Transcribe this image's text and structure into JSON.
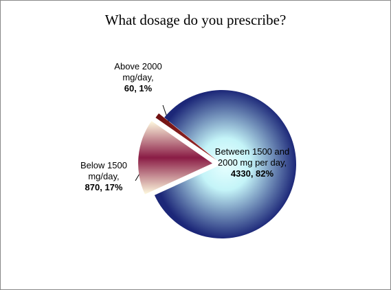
{
  "chart_data": {
    "type": "pie",
    "title": "What dosage do you prescribe?",
    "categories": [
      "Between 1500 and 2000 mg per day",
      "Below 1500 mg/day",
      "Above 2000 mg/day"
    ],
    "values": [
      4330,
      870,
      60
    ],
    "value_labels": [
      "4330, 82%",
      "870, 17%",
      "60, 1%"
    ],
    "colors": [
      "#1c2778",
      "#8a1c45",
      "#6e0f0f"
    ]
  }
}
